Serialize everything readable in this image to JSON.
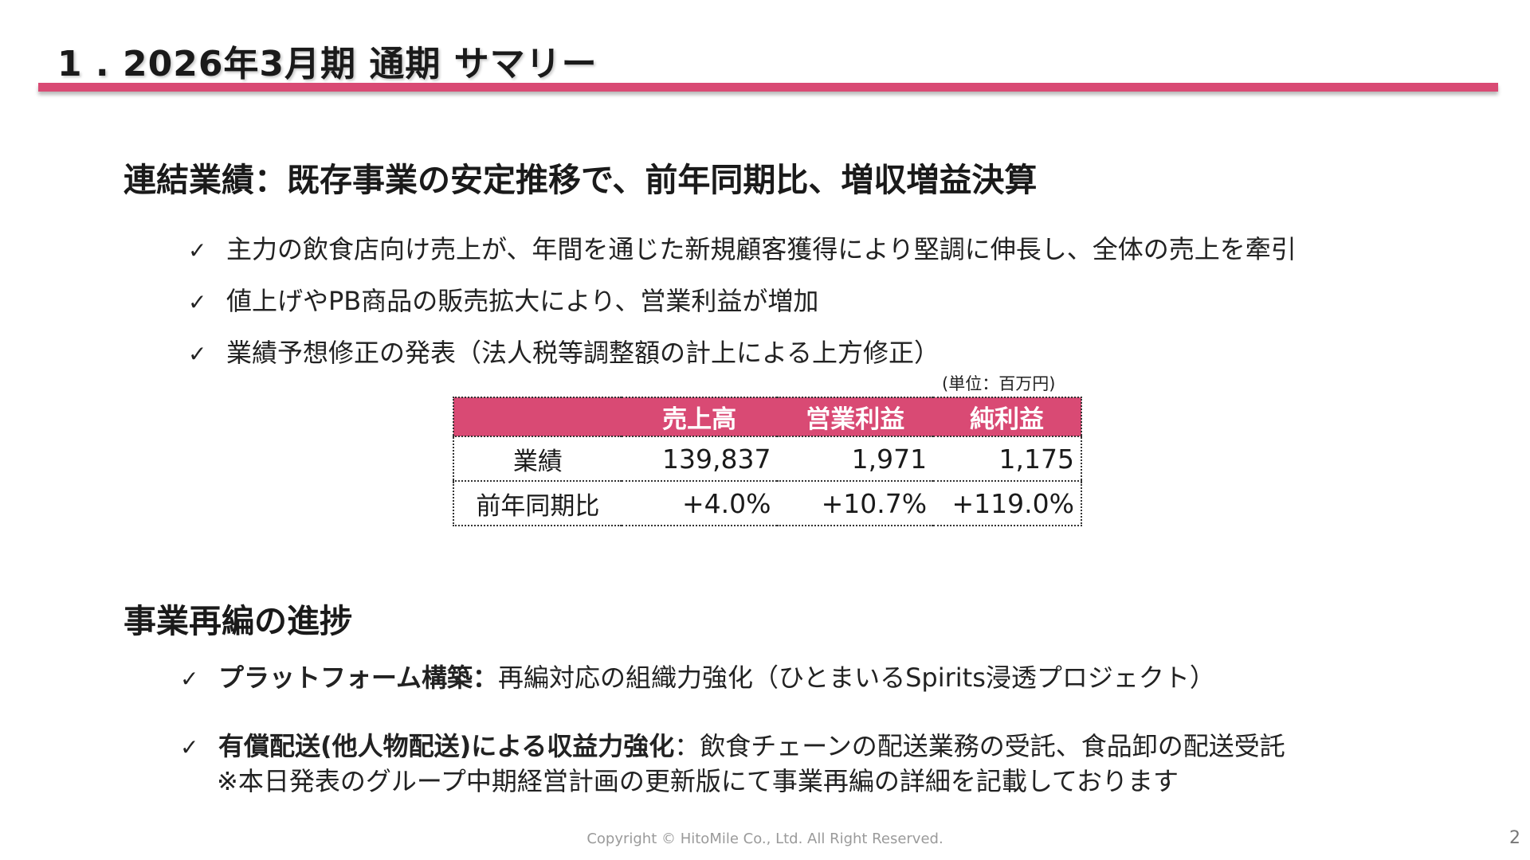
{
  "slide": {
    "title": "1 . 2026年3月期 通期 サマリー",
    "accent_color": "#d94a74"
  },
  "section1": {
    "heading": "連結業績：既存事業の安定推移で、前年同期比、増収増益決算",
    "bullets": [
      {
        "icon": "check-icon",
        "text": "主力の飲食店向け売上が、年間を通じた新規顧客獲得により堅調に伸長し、全体の売上を牽引"
      },
      {
        "icon": "check-icon",
        "text": "値上げやPB商品の販売拡大により、営業利益が増加"
      },
      {
        "icon": "check-icon",
        "text": "業績予想修正の発表（法人税等調整額の計上による上方修正）"
      }
    ],
    "unit_note": "(単位：百万円)"
  },
  "results_table": {
    "headers": [
      "",
      "売上高",
      "営業利益",
      "純利益"
    ],
    "rows": [
      {
        "label": "業績",
        "values": [
          "139,837",
          "1,971",
          "1,175"
        ]
      },
      {
        "label": "前年同期比",
        "values": [
          "+4.0%",
          "+10.7%",
          "+119.0%"
        ]
      }
    ]
  },
  "section2": {
    "heading": "事業再編の進捗",
    "items": [
      {
        "icon": "check-icon",
        "bold": "プラットフォーム構築：",
        "text": "再編対応の組織力強化（ひとまいるSpirits浸透プロジェクト）"
      },
      {
        "icon": "check-icon",
        "bold": "有償配送(他人物配送)による収益力強化",
        "text": "：飲食チェーンの配送業務の受託、食品卸の配送受託",
        "note": "※本日発表のグループ中期経営計画の更新版にて事業再編の詳細を記載しております"
      }
    ]
  },
  "footer": {
    "copyright": "Copyright © HitoMile Co., Ltd. All Right Reserved.",
    "page_number": "2"
  }
}
